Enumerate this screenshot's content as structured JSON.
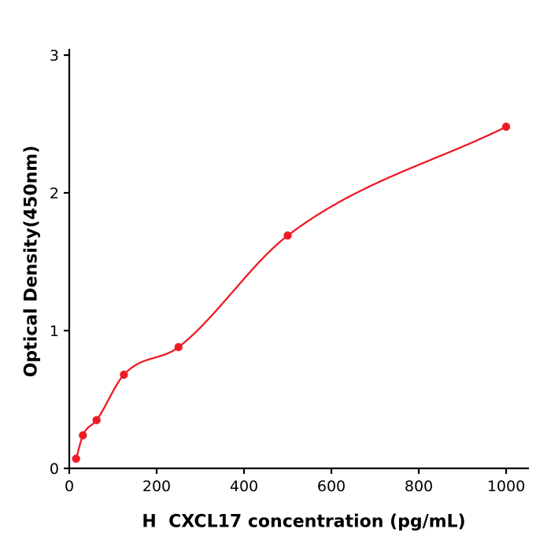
{
  "chart_data": {
    "type": "scatter",
    "title": "",
    "xlabel": "H  CXCL17 concentration (pg/mL)",
    "ylabel": "Optical Density(450nm)",
    "x": [
      15.6,
      31.2,
      62.5,
      125,
      250,
      500,
      1000
    ],
    "y": [
      0.07,
      0.24,
      0.35,
      0.68,
      0.88,
      1.69,
      2.48
    ],
    "fit": "smooth saturating standard-curve through the points",
    "xlim": [
      0,
      1050
    ],
    "ylim": [
      0,
      3.05
    ],
    "xticks": [
      0,
      200,
      400,
      600,
      800,
      1000
    ],
    "yticks": [
      0,
      1,
      2,
      3
    ],
    "grid": false,
    "legend": null,
    "point_color": "#ed1c24",
    "line_color": "#ed1c24",
    "axis_color": "#000000",
    "background": "#ffffff"
  }
}
